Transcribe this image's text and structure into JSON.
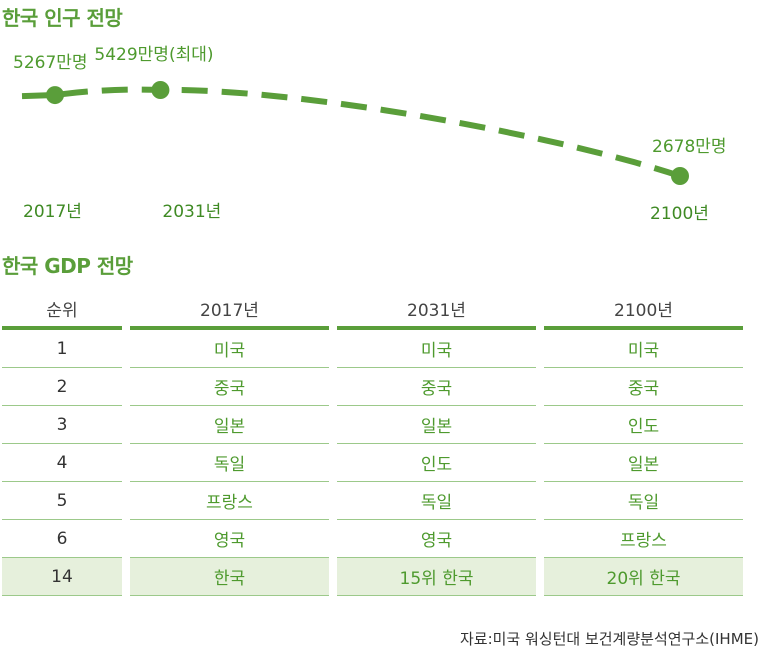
{
  "population": {
    "title": "한국 인구 전망"
  },
  "chart_data": {
    "type": "line",
    "title": "한국 인구 전망",
    "x": [
      "2017년",
      "2031년",
      "2100년"
    ],
    "x_numeric": [
      2017,
      2031,
      2100
    ],
    "values": [
      5267,
      5429,
      2678
    ],
    "labels": [
      "5267만명",
      "5429만명(최대)",
      "2678만명"
    ],
    "unit": "만명",
    "line_color": "#5a9e3a",
    "line_style": "dashed"
  },
  "gdp": {
    "title": "한국 GDP 전망",
    "headers": [
      "순위",
      "2017년",
      "2031년",
      "2100년"
    ],
    "rows": [
      [
        "1",
        "미국",
        "미국",
        "미국"
      ],
      [
        "2",
        "중국",
        "중국",
        "중국"
      ],
      [
        "3",
        "일본",
        "일본",
        "인도"
      ],
      [
        "4",
        "독일",
        "인도",
        "일본"
      ],
      [
        "5",
        "프랑스",
        "독일",
        "독일"
      ],
      [
        "6",
        "영국",
        "영국",
        "프랑스"
      ],
      [
        "14",
        "한국",
        "15위 한국",
        "20위 한국"
      ]
    ],
    "highlight_row": 6,
    "accent_color": "#5a9e3a",
    "highlight_color": "#e6f0dc"
  },
  "source": "자료:미국 워싱턴대 보건계량분석연구소(IHME)"
}
